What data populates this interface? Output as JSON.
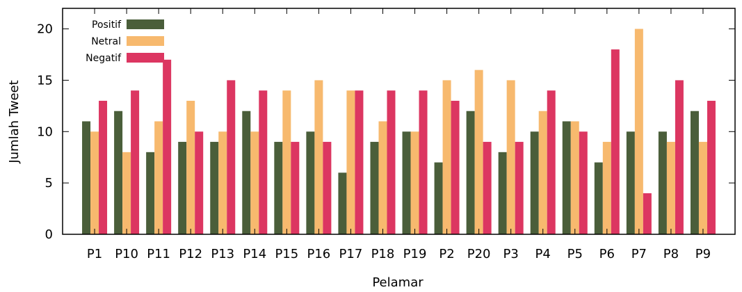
{
  "chart_data": {
    "type": "bar",
    "title": "",
    "xlabel": "Pelamar",
    "ylabel": "Jumlah Tweet",
    "ylim": [
      0,
      22
    ],
    "yticks": [
      0,
      5,
      10,
      15,
      20
    ],
    "grid": false,
    "legend_position": "top-left",
    "categories": [
      "P1",
      "P10",
      "P11",
      "P12",
      "P13",
      "P14",
      "P15",
      "P16",
      "P17",
      "P18",
      "P19",
      "P2",
      "P20",
      "P3",
      "P4",
      "P5",
      "P6",
      "P7",
      "P8",
      "P9"
    ],
    "series": [
      {
        "name": "Positif",
        "color": "#4a5e3a",
        "values": [
          11,
          12,
          8,
          9,
          9,
          12,
          9,
          10,
          6,
          9,
          10,
          7,
          12,
          8,
          10,
          11,
          7,
          10,
          10,
          12
        ]
      },
      {
        "name": "Netral",
        "color": "#f7b96e",
        "values": [
          10,
          8,
          11,
          13,
          10,
          10,
          14,
          15,
          14,
          11,
          10,
          15,
          16,
          15,
          12,
          11,
          9,
          20,
          9,
          9
        ]
      },
      {
        "name": "Negatif",
        "color": "#dc3661",
        "values": [
          13,
          14,
          17,
          10,
          15,
          14,
          9,
          9,
          14,
          14,
          14,
          13,
          9,
          9,
          14,
          10,
          18,
          4,
          15,
          13
        ]
      }
    ]
  }
}
